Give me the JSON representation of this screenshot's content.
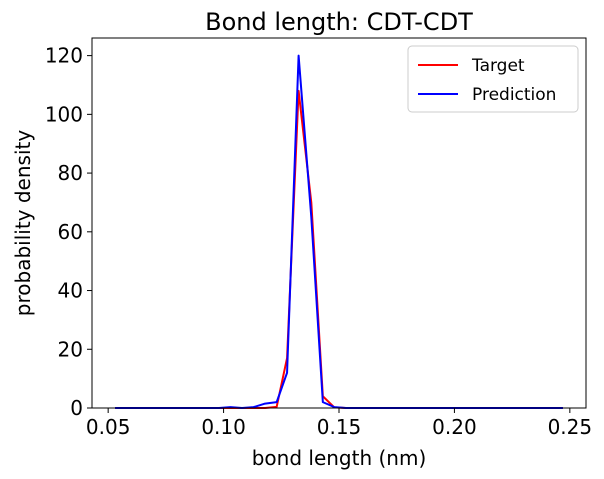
{
  "chart_data": {
    "type": "line",
    "title": "Bond length: CDT-CDT",
    "xlabel": "bond length (nm)",
    "ylabel": "probability density",
    "xlim": [
      0.043,
      0.257
    ],
    "ylim": [
      0,
      126
    ],
    "xticks": [
      {
        "value": 0.05,
        "label": "0.05"
      },
      {
        "value": 0.1,
        "label": "0.10"
      },
      {
        "value": 0.15,
        "label": "0.15"
      },
      {
        "value": 0.2,
        "label": "0.20"
      },
      {
        "value": 0.25,
        "label": "0.25"
      }
    ],
    "yticks": [
      {
        "value": 0,
        "label": "0"
      },
      {
        "value": 20,
        "label": "20"
      },
      {
        "value": 40,
        "label": "40"
      },
      {
        "value": 60,
        "label": "60"
      },
      {
        "value": 80,
        "label": "80"
      },
      {
        "value": 100,
        "label": "100"
      },
      {
        "value": 120,
        "label": "120"
      }
    ],
    "grid": false,
    "legend_position": "top-right",
    "series": [
      {
        "name": "Target",
        "color": "#ff0000",
        "x": [
          0.053,
          0.098,
          0.108,
          0.113,
          0.118,
          0.123,
          0.1275,
          0.1325,
          0.138,
          0.143,
          0.148,
          0.153,
          0.158,
          0.2,
          0.247
        ],
        "y": [
          0,
          0,
          0,
          0,
          0,
          0.4,
          17,
          108,
          70,
          4,
          0.2,
          0,
          0,
          0,
          0
        ]
      },
      {
        "name": "Prediction",
        "color": "#0000ff",
        "x": [
          0.053,
          0.098,
          0.103,
          0.108,
          0.113,
          0.118,
          0.123,
          0.1275,
          0.1325,
          0.138,
          0.143,
          0.148,
          0.153,
          0.158,
          0.2,
          0.247
        ],
        "y": [
          0,
          0,
          0.3,
          0,
          0.3,
          1.5,
          2,
          12,
          120,
          65,
          2,
          0.3,
          0,
          0,
          0,
          0
        ]
      }
    ]
  }
}
